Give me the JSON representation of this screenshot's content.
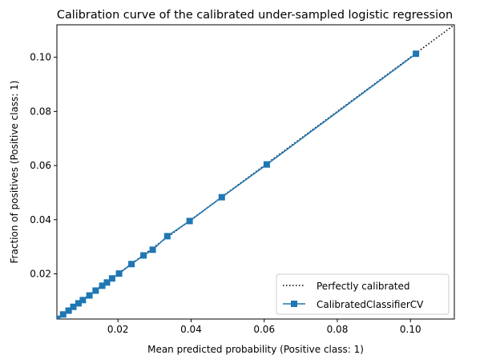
{
  "chart_data": {
    "type": "line",
    "title": "Calibration curve of the calibrated under-sampled logistic regression",
    "xlabel": "Mean predicted probability (Positive class: 1)",
    "ylabel": "Fraction of positives (Positive class: 1)",
    "xlim": [
      0.0033,
      0.112
    ],
    "ylim": [
      0.0033,
      0.112
    ],
    "xticks": [
      0.02,
      0.04,
      0.06,
      0.08,
      0.1
    ],
    "xtick_labels": [
      "0.02",
      "0.04",
      "0.06",
      "0.08",
      "0.10"
    ],
    "yticks": [
      0.02,
      0.04,
      0.06,
      0.08,
      0.1
    ],
    "ytick_labels": [
      "0.02",
      "0.04",
      "0.06",
      "0.08",
      "0.10"
    ],
    "grid": false,
    "legend_position": "lower-right",
    "series": [
      {
        "name": "Perfectly calibrated",
        "style": "dotted",
        "color": "#000000",
        "x": [
          0.0,
          0.112
        ],
        "y": [
          0.0,
          0.112
        ]
      },
      {
        "name": "CalibratedClassifierCV",
        "style": "solid-square-markers",
        "color": "#1f77b4",
        "x": [
          0.0034,
          0.005,
          0.0065,
          0.0078,
          0.0092,
          0.0104,
          0.0122,
          0.0139,
          0.0157,
          0.017,
          0.0184,
          0.0203,
          0.0237,
          0.027,
          0.0295,
          0.0335,
          0.0396,
          0.0484,
          0.0607,
          0.1015
        ],
        "y": [
          0.0034,
          0.005,
          0.0064,
          0.0078,
          0.0091,
          0.0103,
          0.012,
          0.0138,
          0.0156,
          0.0168,
          0.0183,
          0.0201,
          0.0236,
          0.0268,
          0.0289,
          0.0339,
          0.0395,
          0.0483,
          0.0604,
          0.1013
        ]
      }
    ]
  }
}
